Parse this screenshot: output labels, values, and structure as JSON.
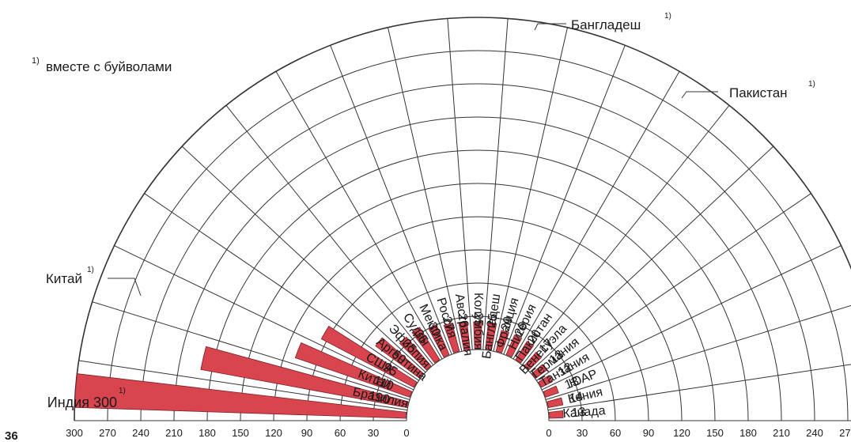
{
  "page_number": "36",
  "footnote": {
    "marker": "1)",
    "text": "вместе с буйволами"
  },
  "chart_data": {
    "type": "bar",
    "layout": "polar-fan",
    "x_scale_ticks": [
      0,
      30,
      60,
      90,
      120,
      150,
      180,
      210,
      240,
      270,
      300
    ],
    "max": 300,
    "colors": {
      "bar": "#d8454f",
      "bar_stroke": "#7a1f25",
      "grid": "#333333"
    },
    "series": [
      {
        "country": "Индия",
        "value": 300,
        "value_label": "300",
        "footnote": true
      },
      {
        "country": "Бразилия",
        "value": 190,
        "value_label": "190"
      },
      {
        "country": "Китай",
        "value": 110,
        "value_label": "110"
      },
      {
        "country": "США",
        "value": 95,
        "value_label": "95"
      },
      {
        "country": "Аргентина",
        "value": 50,
        "value_label": "50"
      },
      {
        "country": "Эфиопия",
        "value": 35,
        "value_label": "35"
      },
      {
        "country": "Судан",
        "value": 35,
        "value_label": "35"
      },
      {
        "country": "Мексика",
        "value": 30,
        "value_label": "30"
      },
      {
        "country": "Россия",
        "value": 27,
        "value_label": "27"
      },
      {
        "country": "Австралия",
        "value": 26,
        "value_label": "26"
      },
      {
        "country": "Колумбия",
        "value": 25,
        "value_label": "25"
      },
      {
        "country": "Бангладеш",
        "value": 25,
        "value_label": "25"
      },
      {
        "country": "Франция",
        "value": 20,
        "value_label": "20"
      },
      {
        "country": "Нигерия",
        "value": 20,
        "value_label": "20"
      },
      {
        "country": "Пакистан",
        "value": 20,
        "value_label": "20"
      },
      {
        "country": "Венесуэла",
        "value": 17,
        "value_label": "17"
      },
      {
        "country": "Германия",
        "value": 13,
        "value_label": "13"
      },
      {
        "country": "Танзания",
        "value": 12,
        "value_label": "12"
      },
      {
        "country": "ЮАР",
        "value": 13,
        "value_label": "13"
      },
      {
        "country": "Кения",
        "value": 14,
        "value_label": "14"
      },
      {
        "country": "Канада",
        "value": 13,
        "value_label": "13"
      }
    ],
    "outer_labels": [
      {
        "text": "Бангладеш",
        "marker": "1)"
      },
      {
        "text": "Пакистан",
        "marker": "1)"
      },
      {
        "text": "Китай",
        "marker": "1)"
      }
    ]
  }
}
